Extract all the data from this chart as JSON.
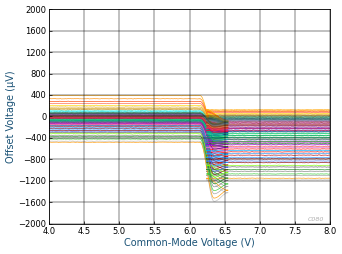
{
  "xlabel": "Common-Mode Voltage (V)",
  "ylabel": "Offset Voltage (µV)",
  "xlim": [
    4,
    8
  ],
  "ylim": [
    -2000,
    2000
  ],
  "xticks": [
    4,
    4.5,
    5,
    5.5,
    6,
    6.5,
    7,
    7.5,
    8
  ],
  "yticks": [
    -2000,
    -1600,
    -1200,
    -800,
    -400,
    0,
    400,
    800,
    1200,
    1600,
    2000
  ],
  "background_color": "#ffffff",
  "n_lines": 64,
  "flat_offsets": [
    -460,
    -400,
    -350,
    -300,
    -260,
    -220,
    -190,
    -165,
    -145,
    -125,
    -108,
    -92,
    -78,
    -65,
    -53,
    -42,
    -32,
    -22,
    -13,
    -5,
    3,
    12,
    22,
    33,
    45,
    58,
    72,
    88,
    105,
    125,
    148,
    175,
    205,
    240,
    280,
    330,
    390,
    -480,
    -420,
    -370,
    -320,
    -275,
    -235,
    -200,
    -172,
    -152,
    -132,
    -115,
    -98,
    -83,
    -70,
    -58,
    -46,
    -36,
    -26,
    -17,
    -8,
    0,
    8,
    18,
    28,
    40,
    54,
    68
  ],
  "final_offsets": [
    -1180,
    -1100,
    -1020,
    -940,
    -860,
    -790,
    -720,
    -660,
    -605,
    -555,
    -508,
    -465,
    -424,
    -386,
    -350,
    -316,
    -284,
    -254,
    -225,
    -198,
    -172,
    -148,
    -125,
    -103,
    -82,
    -62,
    -43,
    -25,
    -8,
    9,
    25,
    41,
    57,
    73,
    90,
    107,
    125,
    -1150,
    -1070,
    -990,
    -910,
    -830,
    -760,
    -692,
    -632,
    -577,
    -527,
    -480,
    -437,
    -396,
    -358,
    -322,
    -288,
    -256,
    -226,
    -197,
    -170,
    -144,
    -120,
    -97,
    -75,
    -54,
    -34,
    -15
  ],
  "peak_offsets": [
    -1580,
    -1440,
    -1310,
    -1190,
    -1080,
    -980,
    -890,
    -808,
    -734,
    -667,
    -607,
    -553,
    -505,
    -462,
    -424,
    -390,
    -360,
    -334,
    -311,
    -291,
    -273,
    -257,
    -243,
    -230,
    -218,
    -207,
    -197,
    -188,
    -180,
    -174,
    -169,
    -166,
    -165,
    -170,
    -185,
    -215,
    -270,
    -1520,
    -1380,
    -1250,
    -1130,
    -1020,
    -920,
    -830,
    -748,
    -674,
    -607,
    -547,
    -493,
    -445,
    -402,
    -364,
    -330,
    -300,
    -274,
    -251,
    -231,
    -213,
    -197,
    -183,
    -170,
    -158,
    -147,
    -137
  ],
  "line_colors": [
    "#c0c0c0",
    "#a0a0a0",
    "#808080",
    "#606060",
    "#8B0000",
    "#a00000",
    "#c00000",
    "#e00000",
    "#FF0000",
    "#ff4040",
    "#006400",
    "#008000",
    "#00a000",
    "#00c000",
    "#00FF00",
    "#40ff40",
    "#00008B",
    "#0000b0",
    "#0000d0",
    "#0000FF",
    "#4040ff",
    "#8B008B",
    "#b000b0",
    "#FF00FF",
    "#ff40ff",
    "#008B8B",
    "#00b0b0",
    "#00d0d0",
    "#00FFFF",
    "#B8860B",
    "#d4a017",
    "#DAA520",
    "#FFD700",
    "#FF6347",
    "#FF4500",
    "#FF8C00",
    "#FFA500",
    "#FF9800",
    "#32CD32",
    "#228B22",
    "#7CFC00",
    "#4169E1",
    "#1E90FF",
    "#2196F3",
    "#03A9F4",
    "#DA70D6",
    "#9400D3",
    "#9C27B0",
    "#673AB7",
    "#20B2AA",
    "#009688",
    "#1ABC9C",
    "#16A085",
    "#DC143C",
    "#E91E63",
    "#F44336",
    "#C0392B",
    "#CD853F",
    "#8B4513",
    "#795548",
    "#607D8B",
    "#455A64",
    "#37474F",
    "#556B2F",
    "#6B8E23"
  ],
  "watermark": "C080",
  "xlabel_color": "#1a5276",
  "ylabel_color": "#1a5276",
  "tick_fontsize": 6,
  "label_fontsize": 7,
  "figsize": [
    3.42,
    2.54
  ],
  "dpi": 100
}
